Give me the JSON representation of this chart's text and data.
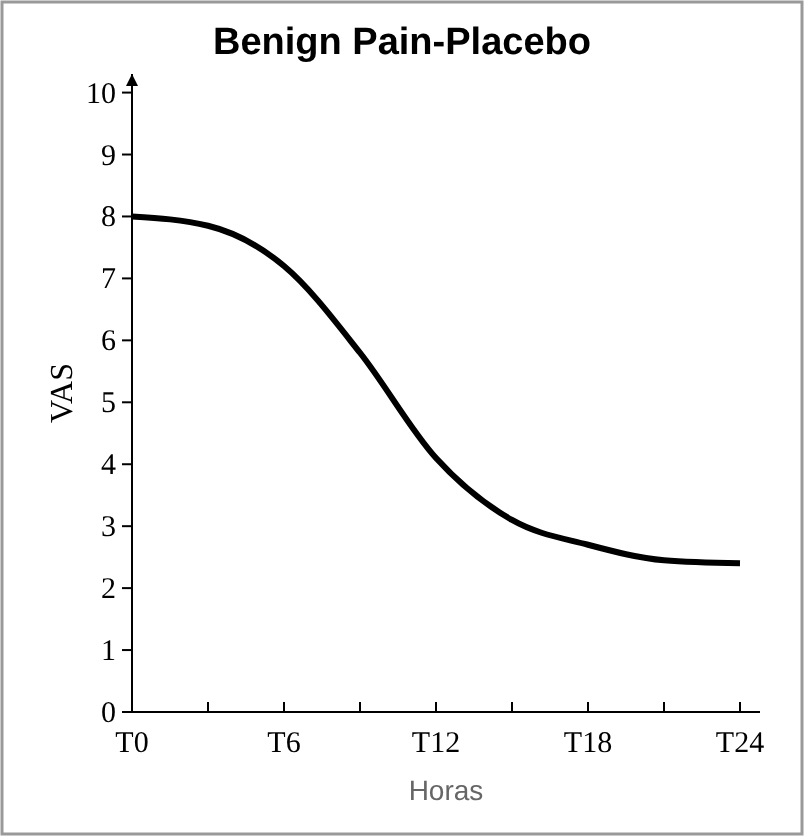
{
  "chart_data": {
    "type": "line",
    "title": "Benign Pain-Placebo",
    "xlabel": "Horas",
    "ylabel": "VAS",
    "categories": [
      "T0",
      null,
      "T6",
      null,
      "T12",
      null,
      "T18",
      null,
      "T24"
    ],
    "series": [
      {
        "color": "#000000",
        "values": [
          8.0,
          7.85,
          7.2,
          5.8,
          4.1,
          3.1,
          2.7,
          2.45,
          2.4
        ]
      }
    ],
    "ylim": [
      0,
      10.3
    ],
    "yticks": [
      0,
      1,
      2,
      3,
      4,
      5,
      6,
      7,
      8,
      9,
      10
    ],
    "grid": false,
    "marker": "none",
    "line_style": "solid"
  }
}
